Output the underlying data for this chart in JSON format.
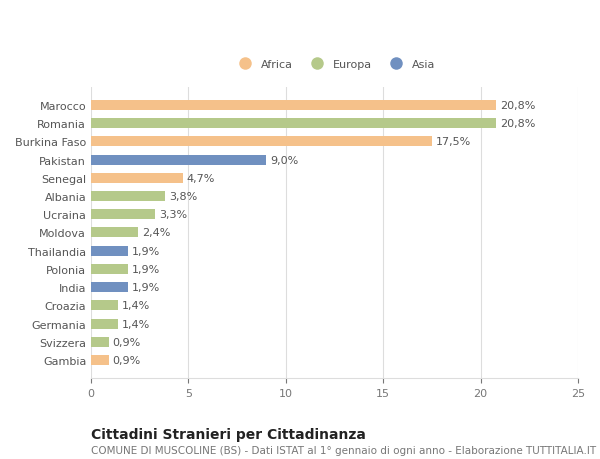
{
  "countries": [
    "Marocco",
    "Romania",
    "Burkina Faso",
    "Pakistan",
    "Senegal",
    "Albania",
    "Ucraina",
    "Moldova",
    "Thailandia",
    "Polonia",
    "India",
    "Croazia",
    "Germania",
    "Svizzera",
    "Gambia"
  ],
  "values": [
    20.8,
    20.8,
    17.5,
    9.0,
    4.7,
    3.8,
    3.3,
    2.4,
    1.9,
    1.9,
    1.9,
    1.4,
    1.4,
    0.9,
    0.9
  ],
  "continents": [
    "Africa",
    "Europa",
    "Africa",
    "Asia",
    "Africa",
    "Europa",
    "Europa",
    "Europa",
    "Asia",
    "Europa",
    "Asia",
    "Europa",
    "Europa",
    "Europa",
    "Africa"
  ],
  "colors": {
    "Africa": "#F5C18A",
    "Europa": "#B5C98A",
    "Asia": "#7090C0"
  },
  "legend_order": [
    "Africa",
    "Europa",
    "Asia"
  ],
  "xlim": [
    0,
    25
  ],
  "xticks": [
    0,
    5,
    10,
    15,
    20,
    25
  ],
  "title": "Cittadini Stranieri per Cittadinanza",
  "subtitle": "COMUNE DI MUSCOLINE (BS) - Dati ISTAT al 1° gennaio di ogni anno - Elaborazione TUTTITALIA.IT",
  "bg_color": "#ffffff",
  "grid_color": "#dddddd",
  "bar_height": 0.55,
  "title_fontsize": 10,
  "subtitle_fontsize": 7.5,
  "label_fontsize": 8,
  "tick_fontsize": 8
}
